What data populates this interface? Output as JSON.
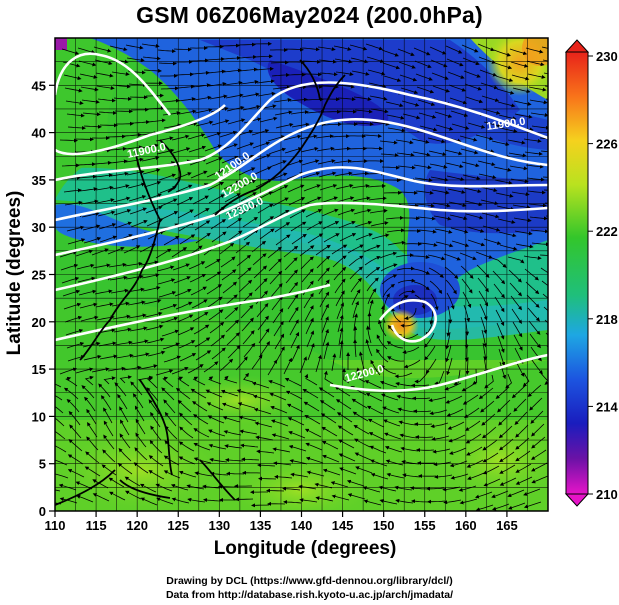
{
  "title": "GSM 06Z06May2024 (200.0hPa)",
  "chart_data": {
    "type": "heatmap",
    "xlabel": "Longitude (degrees)",
    "ylabel": "Latitude  (degrees)",
    "xlim": [
      110,
      170
    ],
    "ylim": [
      0,
      50
    ],
    "xticks": [
      "110",
      "115",
      "120",
      "125",
      "130",
      "135",
      "140",
      "145",
      "150",
      "155",
      "160",
      "165"
    ],
    "yticks": [
      "0",
      "5",
      "10",
      "15",
      "20",
      "25",
      "30",
      "35",
      "40",
      "45"
    ],
    "colorbar": {
      "ticks": [
        "230",
        "226",
        "222",
        "218",
        "214",
        "210"
      ],
      "range": [
        210,
        230
      ]
    },
    "contour_labels": [
      "11900.0",
      "12100.0",
      "12200.0",
      "12300.0",
      "11900.0",
      "12200.0"
    ],
    "grid": true,
    "streamlines": true
  },
  "credits": {
    "line1": "Drawing by DCL (https://www.gfd-dennou.org/library/dcl/)",
    "line2": "Data from http://database.rish.kyoto-u.ac.jp/arch/jmadata/"
  }
}
